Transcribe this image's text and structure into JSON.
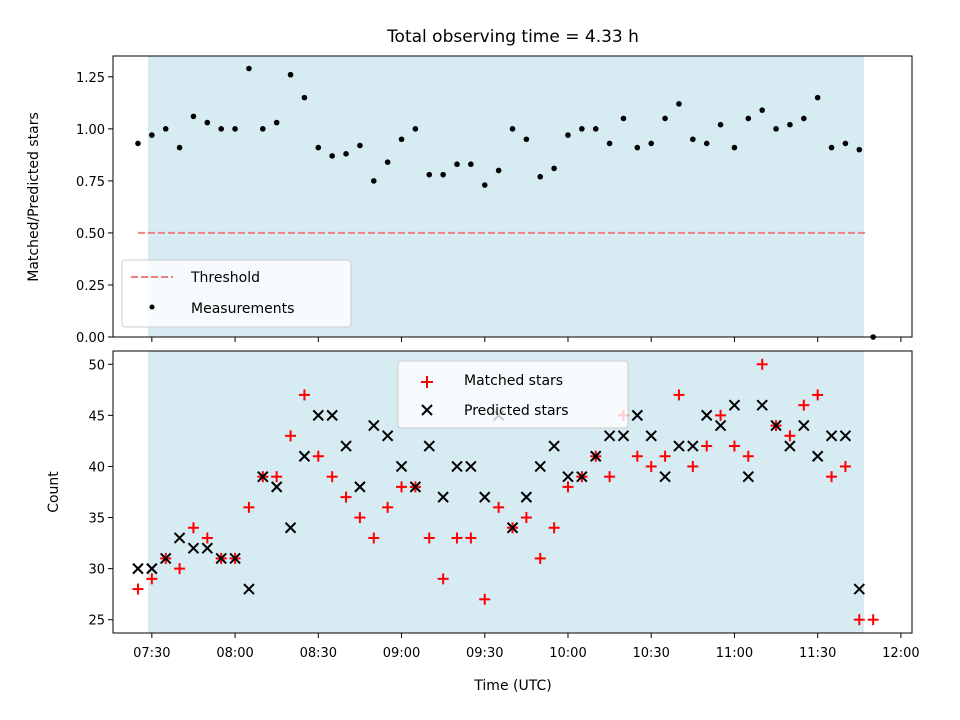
{
  "chart_data": [
    {
      "type": "scatter",
      "title": "Total observing time = 4.33 h",
      "xlabel": "",
      "ylabel": "Matched/Predicted stars",
      "x_range": [
        "07:16",
        "12:04"
      ],
      "ylim": [
        0,
        1.35
      ],
      "yticks": [
        "0.00",
        "0.25",
        "0.50",
        "0.75",
        "1.00",
        "1.25"
      ],
      "observing_window": [
        "07:25",
        "11:45"
      ],
      "threshold": {
        "name": "Threshold",
        "value": 0.5,
        "x_range": [
          "07:25",
          "11:48"
        ],
        "color": "#f08080"
      },
      "legend": {
        "position": "lower left",
        "entries": [
          "Threshold",
          "Measurements"
        ]
      },
      "series": [
        {
          "name": "Measurements",
          "color": "#000000",
          "x": [
            "07:25",
            "07:30",
            "07:35",
            "07:40",
            "07:45",
            "07:50",
            "07:55",
            "08:00",
            "08:05",
            "08:10",
            "08:15",
            "08:20",
            "08:25",
            "08:30",
            "08:35",
            "08:40",
            "08:45",
            "08:50",
            "08:55",
            "09:00",
            "09:05",
            "09:10",
            "09:15",
            "09:20",
            "09:25",
            "09:30",
            "09:35",
            "09:40",
            "09:45",
            "09:50",
            "09:55",
            "10:00",
            "10:05",
            "10:10",
            "10:15",
            "10:20",
            "10:25",
            "10:30",
            "10:35",
            "10:40",
            "10:45",
            "10:50",
            "10:55",
            "11:00",
            "11:05",
            "11:10",
            "11:15",
            "11:20",
            "11:25",
            "11:30",
            "11:35",
            "11:40",
            "11:45",
            "11:50"
          ],
          "y": [
            0.93,
            0.97,
            1.0,
            0.91,
            1.06,
            1.03,
            1.0,
            1.0,
            1.29,
            1.0,
            1.03,
            1.26,
            1.15,
            0.91,
            0.87,
            0.88,
            0.92,
            0.75,
            0.84,
            0.95,
            1.0,
            0.78,
            0.78,
            0.83,
            0.83,
            0.73,
            0.8,
            1.0,
            0.95,
            0.77,
            0.81,
            0.97,
            1.0,
            1.0,
            0.93,
            1.05,
            0.91,
            0.93,
            1.05,
            1.12,
            0.95,
            0.93,
            1.02,
            0.91,
            1.05,
            1.09,
            1.0,
            1.02,
            1.05,
            1.15,
            0.91,
            0.93,
            0.9,
            0.0
          ]
        }
      ]
    },
    {
      "type": "scatter",
      "title": "",
      "xlabel": "Time (UTC)",
      "ylabel": "Count",
      "x_range": [
        "07:16",
        "12:04"
      ],
      "ylim": [
        23.7,
        51.3
      ],
      "yticks": [
        "25",
        "30",
        "35",
        "40",
        "45",
        "50"
      ],
      "xticks": [
        "07:30",
        "08:00",
        "08:30",
        "09:00",
        "09:30",
        "10:00",
        "10:30",
        "11:00",
        "11:30",
        "12:00"
      ],
      "observing_window": [
        "07:25",
        "11:45"
      ],
      "legend": {
        "position": "upper center",
        "entries": [
          "Matched stars",
          "Predicted stars"
        ]
      },
      "series": [
        {
          "name": "Matched stars",
          "marker": "plus",
          "color": "#ff0000",
          "x": [
            "07:25",
            "07:30",
            "07:35",
            "07:40",
            "07:45",
            "07:50",
            "07:55",
            "08:00",
            "08:05",
            "08:10",
            "08:15",
            "08:20",
            "08:25",
            "08:30",
            "08:35",
            "08:40",
            "08:45",
            "08:50",
            "08:55",
            "09:00",
            "09:05",
            "09:10",
            "09:15",
            "09:20",
            "09:25",
            "09:30",
            "09:35",
            "09:40",
            "09:45",
            "09:50",
            "09:55",
            "10:00",
            "10:05",
            "10:10",
            "10:15",
            "10:20",
            "10:25",
            "10:30",
            "10:35",
            "10:40",
            "10:45",
            "10:50",
            "10:55",
            "11:00",
            "11:05",
            "11:10",
            "11:15",
            "11:20",
            "11:25",
            "11:30",
            "11:35",
            "11:40",
            "11:45",
            "11:50"
          ],
          "y": [
            28,
            29,
            31,
            30,
            34,
            33,
            31,
            31,
            36,
            39,
            39,
            43,
            47,
            41,
            39,
            37,
            35,
            33,
            36,
            38,
            38,
            33,
            29,
            33,
            33,
            27,
            36,
            34,
            35,
            31,
            34,
            38,
            39,
            41,
            39,
            45,
            41,
            40,
            41,
            47,
            40,
            42,
            45,
            42,
            41,
            50,
            44,
            43,
            46,
            47,
            39,
            40,
            25,
            25
          ]
        },
        {
          "name": "Predicted stars",
          "marker": "x",
          "color": "#000000",
          "x": [
            "07:25",
            "07:30",
            "07:35",
            "07:40",
            "07:45",
            "07:50",
            "07:55",
            "08:00",
            "08:05",
            "08:10",
            "08:15",
            "08:20",
            "08:25",
            "08:30",
            "08:35",
            "08:40",
            "08:45",
            "08:50",
            "08:55",
            "09:00",
            "09:05",
            "09:10",
            "09:15",
            "09:20",
            "09:25",
            "09:30",
            "09:35",
            "09:40",
            "09:45",
            "09:50",
            "09:55",
            "10:00",
            "10:05",
            "10:10",
            "10:15",
            "10:20",
            "10:25",
            "10:30",
            "10:35",
            "10:40",
            "10:45",
            "10:50",
            "10:55",
            "11:00",
            "11:05",
            "11:10",
            "11:15",
            "11:20",
            "11:25",
            "11:30",
            "11:35",
            "11:40",
            "11:45"
          ],
          "y": [
            30,
            30,
            31,
            33,
            32,
            32,
            31,
            31,
            28,
            39,
            38,
            34,
            41,
            45,
            45,
            42,
            38,
            44,
            43,
            40,
            38,
            42,
            37,
            40,
            40,
            37,
            45,
            34,
            37,
            40,
            42,
            39,
            39,
            41,
            43,
            43,
            45,
            43,
            39,
            42,
            42,
            45,
            44,
            46,
            39,
            46,
            44,
            42,
            44,
            41,
            43,
            43,
            28
          ]
        }
      ]
    }
  ]
}
